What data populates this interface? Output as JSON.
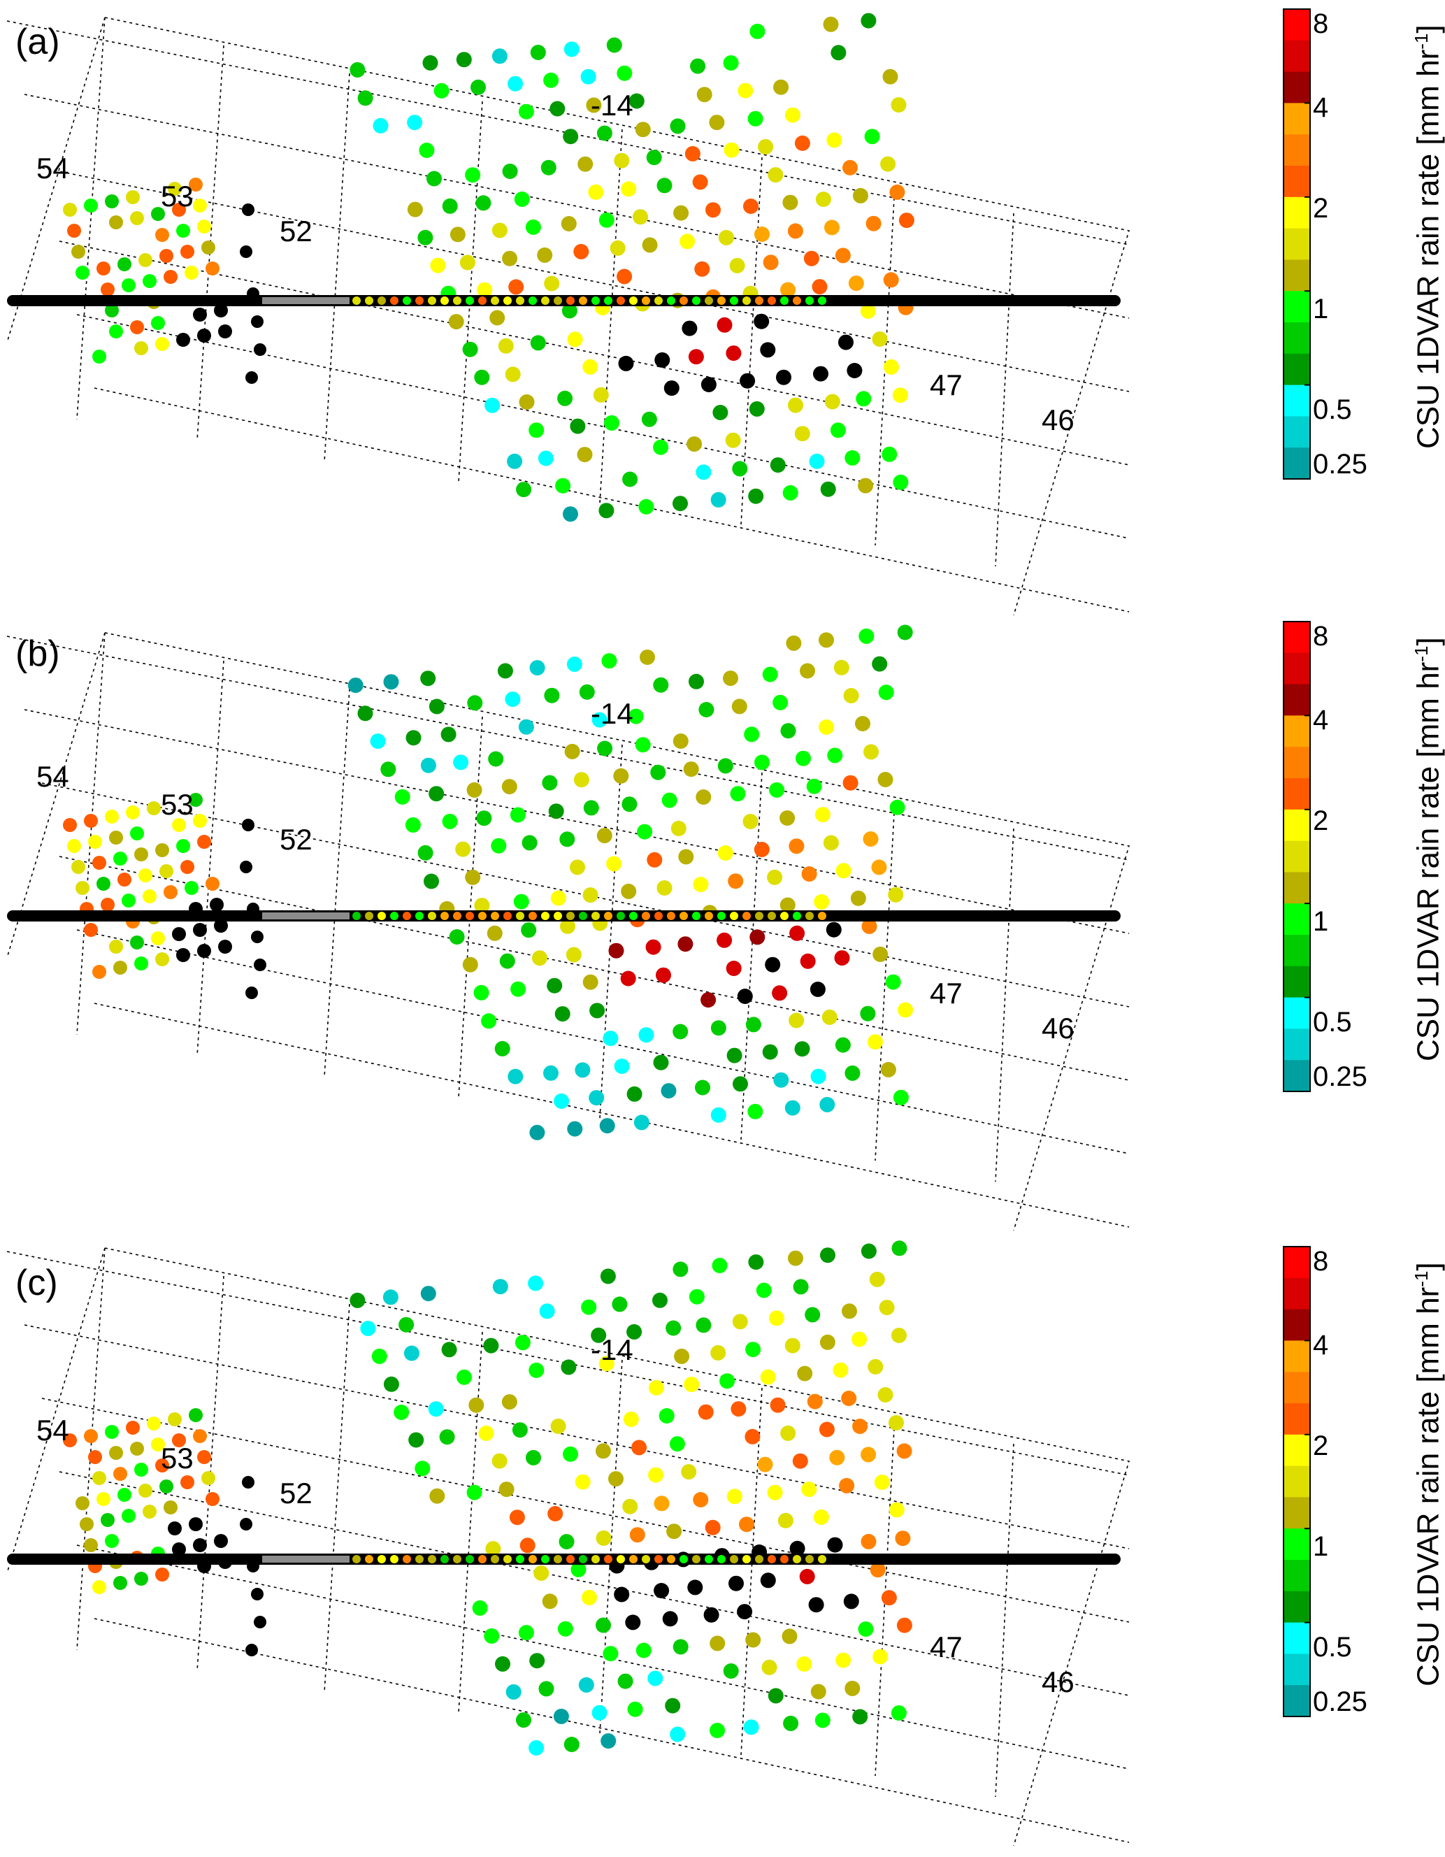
{
  "figure": {
    "panels": [
      {
        "id": "a",
        "label": "(a)",
        "grid_labels": {
          "lon": [
            "-14"
          ],
          "lat": [
            "54",
            "53",
            "52",
            "47",
            "46"
          ]
        }
      },
      {
        "id": "b",
        "label": "(b)",
        "grid_labels": {
          "lon": [
            "-14"
          ],
          "lat": [
            "54",
            "53",
            "52",
            "47",
            "46"
          ]
        }
      },
      {
        "id": "c",
        "label": "(c)",
        "grid_labels": {
          "lon": [
            "-14"
          ],
          "lat": [
            "54",
            "53",
            "52",
            "47",
            "46"
          ]
        }
      }
    ],
    "colorbar": {
      "title_main": "CSU 1DVAR rain rate [mm hr",
      "title_sup": "-1",
      "title_end": "]",
      "tick_labels": [
        "8",
        "4",
        "2",
        "1",
        "0.5",
        "0.25"
      ],
      "ticks": [
        8,
        4,
        2,
        1,
        0.5,
        0.25
      ],
      "scale": "log",
      "colors_top_to_bottom": [
        "#ff0000",
        "#d80000",
        "#990000",
        "#ffa500",
        "#ff8000",
        "#ff5a00",
        "#ffff00",
        "#dede00",
        "#b9b000",
        "#00ff00",
        "#00cc00",
        "#009900",
        "#00ffff",
        "#00d0d0",
        "#00a0a0"
      ]
    },
    "legend_colors": {
      "no_rain_point": "#000000",
      "track_gray": "#8c8c8c",
      "heavy_rain": "#000000"
    }
  }
}
